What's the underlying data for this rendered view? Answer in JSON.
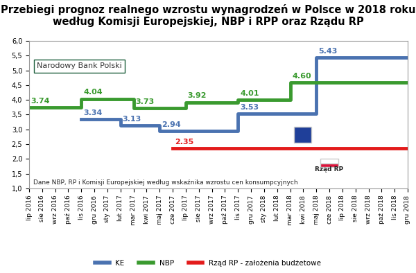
{
  "chart_data": {
    "type": "line",
    "title": "Przebiegi prognoz realnego wzrostu wynagrodzeń w Polsce w 2018 roku według Komisji Europejskiej, NBP i RPP oraz Rządu RP",
    "line_style": "steps",
    "categories": [
      "lip 2016",
      "sie 2016",
      "wrz 2016",
      "paź 2016",
      "lis 2016",
      "gru 2016",
      "sty 2017",
      "lut 2017",
      "mar 2017",
      "kwi 2017",
      "maj 2017",
      "cze 2017",
      "lip 2017",
      "sie 2017",
      "wrz 2017",
      "paź 2017",
      "lis 2017",
      "gru 2017",
      "sty 2018",
      "lut 2018",
      "mar 2018",
      "kwi 2018",
      "maj 2018",
      "cze 2018",
      "lip 2018",
      "sie 2018",
      "wrz 2018",
      "paź 2018",
      "lis 2018",
      "gru 2018"
    ],
    "series": [
      {
        "name": "KE",
        "color": "#4a72b0",
        "values": [
          null,
          null,
          null,
          null,
          3.34,
          3.34,
          3.34,
          3.13,
          3.13,
          3.13,
          2.94,
          2.94,
          2.94,
          2.94,
          2.94,
          2.94,
          3.53,
          3.53,
          3.53,
          3.53,
          3.53,
          3.53,
          5.43,
          5.43,
          5.43,
          5.43,
          5.43,
          5.43,
          5.43,
          5.43
        ],
        "value_labels": [
          null,
          null,
          null,
          null,
          "3.34",
          null,
          null,
          "3.13",
          null,
          null,
          "2.94",
          null,
          null,
          null,
          null,
          null,
          "3.53",
          null,
          null,
          null,
          null,
          null,
          "5.43",
          null,
          null,
          null,
          null,
          null,
          null,
          null
        ]
      },
      {
        "name": "NBP",
        "color": "#3a9a2f",
        "values": [
          3.74,
          3.74,
          3.74,
          3.74,
          4.04,
          4.04,
          4.04,
          4.04,
          3.73,
          3.73,
          3.73,
          3.73,
          3.92,
          3.92,
          3.92,
          3.92,
          4.01,
          4.01,
          4.01,
          4.01,
          4.6,
          4.6,
          4.6,
          4.6,
          4.6,
          4.6,
          4.6,
          4.6,
          4.6,
          4.6
        ],
        "value_labels": [
          "3.74",
          null,
          null,
          null,
          "4.04",
          null,
          null,
          null,
          "3.73",
          null,
          null,
          null,
          "3.92",
          null,
          null,
          null,
          "4.01",
          null,
          null,
          null,
          "4.60",
          null,
          null,
          null,
          null,
          null,
          null,
          null,
          null,
          null
        ]
      },
      {
        "name": "Rząd RP - założenia budżetowe",
        "color": "#e31b1b",
        "values": [
          null,
          null,
          null,
          null,
          null,
          null,
          null,
          null,
          null,
          null,
          null,
          2.35,
          2.35,
          2.35,
          2.35,
          2.35,
          2.35,
          2.35,
          2.35,
          2.35,
          2.35,
          2.35,
          2.35,
          2.35,
          2.35,
          2.35,
          2.35,
          2.35,
          2.35,
          2.35
        ],
        "value_labels": [
          null,
          null,
          null,
          null,
          null,
          null,
          null,
          null,
          null,
          null,
          null,
          "2.35",
          null,
          null,
          null,
          null,
          null,
          null,
          null,
          null,
          null,
          null,
          null,
          null,
          null,
          null,
          null,
          null,
          null,
          null
        ]
      }
    ],
    "ylim": [
      1.0,
      6.0
    ],
    "yticks": [
      {
        "value": 1.0,
        "label": "1,0"
      },
      {
        "value": 1.5,
        "label": "1,5"
      },
      {
        "value": 2.0,
        "label": "2,0"
      },
      {
        "value": 2.5,
        "label": "2,5"
      },
      {
        "value": 3.0,
        "label": "3,0"
      },
      {
        "value": 3.5,
        "label": "3,5"
      },
      {
        "value": 4.0,
        "label": "4,0"
      },
      {
        "value": 4.5,
        "label": "4,5"
      },
      {
        "value": 5.0,
        "label": "5,0"
      },
      {
        "value": 5.5,
        "label": "5,5"
      },
      {
        "value": 6.0,
        "label": "6,0"
      }
    ],
    "grid": false,
    "legend": "lower center",
    "data_labels": true,
    "annotations": [
      "Narodowy Bank Polski",
      "Rząd RP",
      "Dane NBP, RP i Komisji Europejskiej według wskaźnika wzrostu cen konsumpcyjnych"
    ]
  }
}
